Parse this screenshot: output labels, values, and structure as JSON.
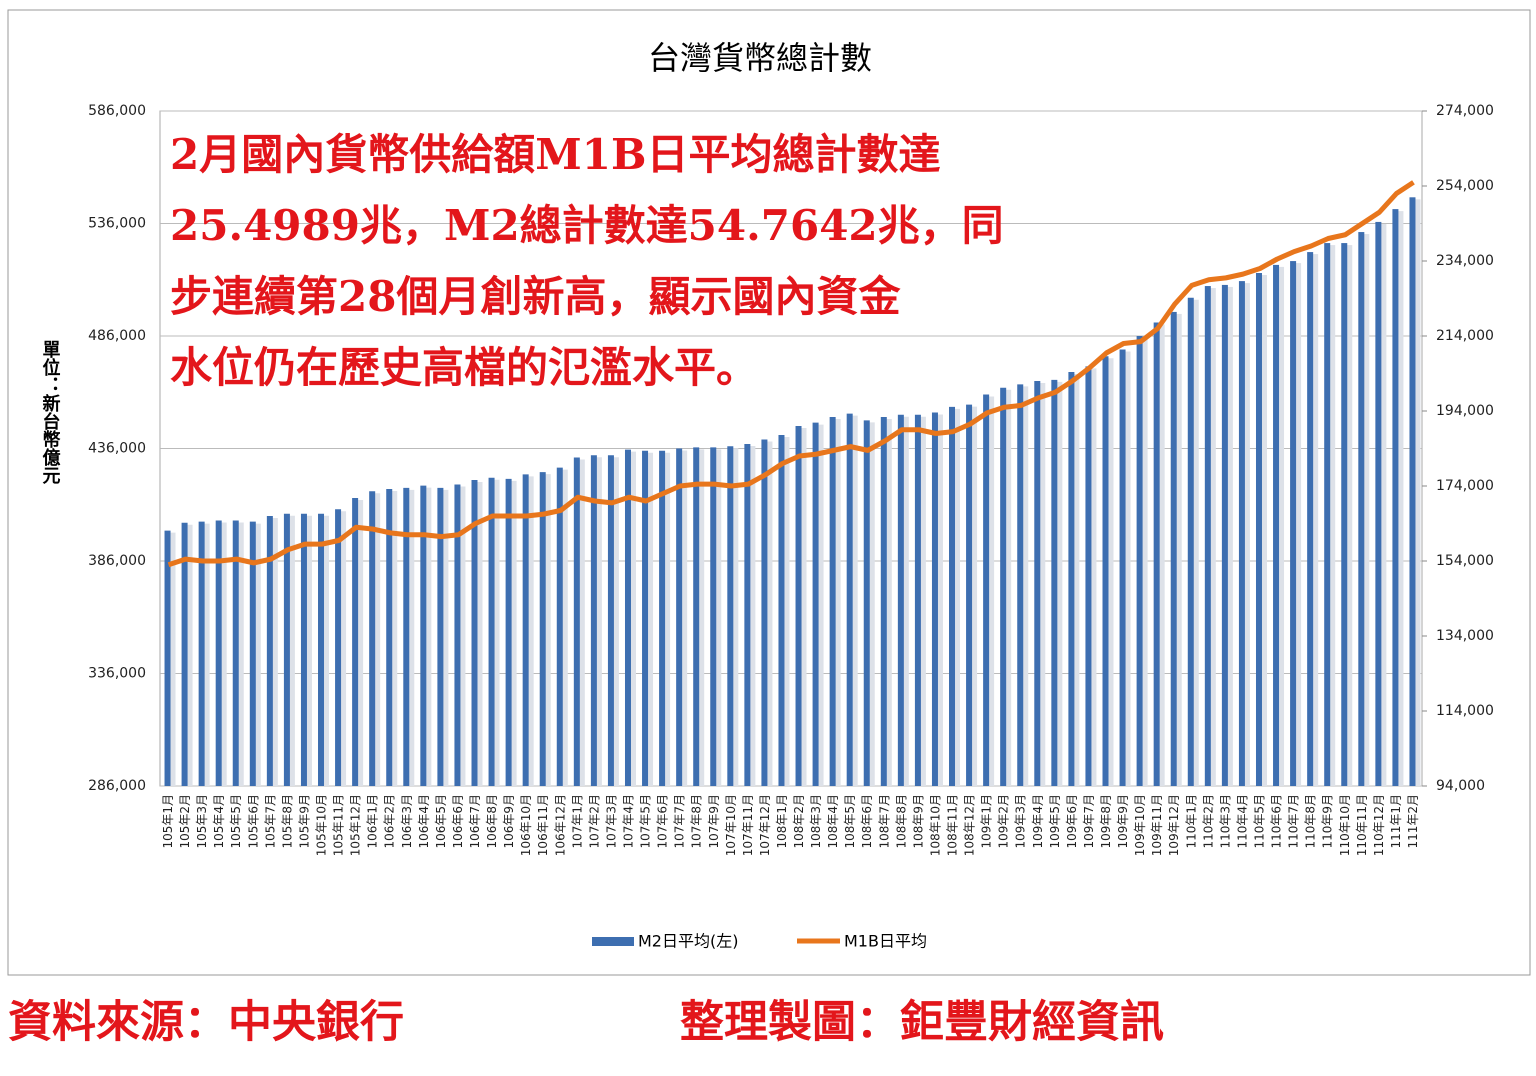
{
  "chart_data": {
    "type": "bar-line",
    "title": "台灣貨幣總計數",
    "y_label": "單位：新台幣億元",
    "annotation": [
      "2月國內貨幣供給額M1B日平均總計數達",
      "25.4989兆，M2總計數達54.7642兆，同",
      "步連續第28個月創新高，顯示國內資金",
      "水位仍在歷史高檔的氾濫水平。"
    ],
    "source": "資料來源：中央銀行",
    "credit": "整理製圖：鉅豐財經資訊",
    "categories": [
      "105年1月",
      "105年2月",
      "105年3月",
      "105年4月",
      "105年5月",
      "105年6月",
      "105年7月",
      "105年8月",
      "105年9月",
      "105年10月",
      "105年11月",
      "105年12月",
      "106年1月",
      "106年2月",
      "106年3月",
      "106年4月",
      "106年5月",
      "106年6月",
      "106年7月",
      "106年8月",
      "106年9月",
      "106年10月",
      "106年11月",
      "106年12月",
      "107年1月",
      "107年2月",
      "107年3月",
      "107年4月",
      "107年5月",
      "107年6月",
      "107年7月",
      "107年8月",
      "107年9月",
      "107年10月",
      "107年11月",
      "107年12月",
      "108年1月",
      "108年2月",
      "108年3月",
      "108年4月",
      "108年5月",
      "108年6月",
      "108年7月",
      "108年8月",
      "108年9月",
      "108年10月",
      "108年11月",
      "108年12月",
      "109年1月",
      "109年2月",
      "109年3月",
      "109年4月",
      "109年5月",
      "109年6月",
      "109年7月",
      "109年8月",
      "109年9月",
      "109年10月",
      "109年11月",
      "109年12月",
      "110年1月",
      "110年2月",
      "110年3月",
      "110年4月",
      "110年5月",
      "110年6月",
      "110年7月",
      "110年8月",
      "110年9月",
      "110年10月",
      "110年11月",
      "110年12月",
      "111年1月",
      "111年2月"
    ],
    "series": [
      {
        "name": "M2日平均(左)",
        "color": "#3d6eb0",
        "axis": "y",
        "values": [
          399500,
          403000,
          403500,
          404000,
          404000,
          403500,
          406000,
          407000,
          407000,
          407000,
          409000,
          414000,
          417000,
          418000,
          418500,
          419500,
          418500,
          420000,
          422000,
          423000,
          422500,
          424500,
          425500,
          427500,
          432000,
          433000,
          433000,
          435500,
          435000,
          435000,
          436000,
          436500,
          436500,
          437000,
          438000,
          440000,
          442000,
          446000,
          447500,
          450000,
          451500,
          448500,
          450000,
          451000,
          451000,
          452000,
          454500,
          455500,
          460000,
          463000,
          464500,
          466000,
          466500,
          470000,
          472500,
          477000,
          480000,
          486000,
          492000,
          496700,
          503000,
          508200,
          508700,
          510400,
          514000,
          517600,
          519300,
          523300,
          527300,
          527300,
          532200,
          536700,
          542400,
          547642
        ]
      },
      {
        "name": "M1B日平均",
        "color": "#e8761c",
        "axis": "y2",
        "values": [
          153000,
          154500,
          154000,
          154000,
          154500,
          153500,
          154500,
          157000,
          158500,
          158500,
          159500,
          163000,
          162500,
          161500,
          161000,
          161000,
          160500,
          161000,
          164000,
          166000,
          166000,
          166000,
          166500,
          167500,
          171000,
          170000,
          169500,
          171000,
          170000,
          172000,
          174000,
          174500,
          174500,
          174000,
          174500,
          177000,
          180000,
          182000,
          182500,
          183500,
          184500,
          183500,
          186000,
          189000,
          189000,
          188000,
          188500,
          190500,
          193500,
          195000,
          195500,
          197500,
          199000,
          202000,
          205500,
          209500,
          212000,
          212500,
          216000,
          222500,
          227500,
          229000,
          229500,
          230500,
          232000,
          234500,
          236500,
          238000,
          240000,
          241000,
          244000,
          247000,
          252000,
          254989
        ]
      }
    ],
    "ylim": [
      286000,
      586000
    ],
    "yticks": [
      {
        "value": 286000,
        "label": "286,000"
      },
      {
        "value": 336000,
        "label": "336,000"
      },
      {
        "value": 386000,
        "label": "386,000"
      },
      {
        "value": 436000,
        "label": "436,000"
      },
      {
        "value": 486000,
        "label": "486,000"
      },
      {
        "value": 536000,
        "label": "536,000"
      },
      {
        "value": 586000,
        "label": "586,000"
      }
    ],
    "y2lim": [
      94000,
      274000
    ],
    "y2ticks": [
      {
        "value": 94000,
        "label": "94,000"
      },
      {
        "value": 114000,
        "label": "114,000"
      },
      {
        "value": 134000,
        "label": "134,000"
      },
      {
        "value": 154000,
        "label": "154,000"
      },
      {
        "value": 174000,
        "label": "174,000"
      },
      {
        "value": 194000,
        "label": "194,000"
      },
      {
        "value": 214000,
        "label": "214,000"
      },
      {
        "value": 234000,
        "label": "234,000"
      },
      {
        "value": 254000,
        "label": "254,000"
      },
      {
        "value": 274000,
        "label": "274,000"
      }
    ],
    "grid": true,
    "legend": "bottom"
  }
}
